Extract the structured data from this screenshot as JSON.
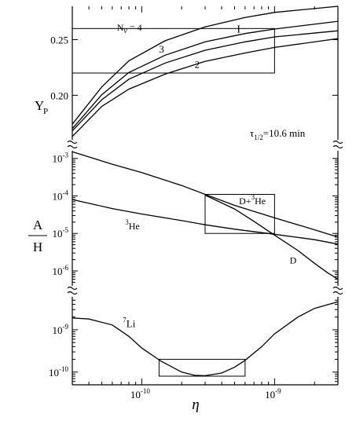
{
  "chart_data": {
    "type": "line",
    "xlabel": "η",
    "x_scale": "log",
    "xlim": [
      3e-11,
      3e-09
    ],
    "x_ticks": [
      {
        "value": 1e-10,
        "base": "10",
        "exp": "-10"
      },
      {
        "value": 1e-09,
        "base": "10",
        "exp": "-9"
      }
    ],
    "annotation_text": "τ1/2=10.6 min",
    "annotation": {
      "tau": "τ",
      "sub": "1/2",
      "rest": "=10.6 min"
    },
    "panels": [
      {
        "id": "yp",
        "ylabel": "Y",
        "ylabel_sub": "P",
        "y_scale": "linear",
        "ylim": [
          0.16,
          0.28
        ],
        "y_ticks": [
          {
            "value": 0.2,
            "label": "0.20"
          },
          {
            "value": 0.25,
            "label": "0.25"
          }
        ],
        "box": {
          "x": [
            3e-11,
            1e-09
          ],
          "y": [
            0.22,
            0.26
          ]
        },
        "series": [
          {
            "name": "Nν=4",
            "label_parts": [
              "N",
              "ν",
              " = 4"
            ],
            "label_at": [
              6.5e-11,
              0.258
            ],
            "points": [
              [
                3e-11,
                0.174
              ],
              [
                5e-11,
                0.2075
              ],
              [
                8e-11,
                0.231
              ],
              [
                1.5e-10,
                0.249
              ],
              [
                3e-10,
                0.2615
              ],
              [
                6e-10,
                0.27
              ],
              [
                1e-09,
                0.2745
              ],
              [
                3e-09,
                0.28
              ]
            ]
          },
          {
            "name": "I",
            "label_parts": [
              "I"
            ],
            "label_at": [
              5.2e-10,
              0.2565
            ],
            "points": [
              [
                3e-11,
                0.17
              ],
              [
                5e-11,
                0.2005
              ],
              [
                8e-11,
                0.2205
              ],
              [
                1.5e-10,
                0.236
              ],
              [
                3e-10,
                0.248
              ],
              [
                6e-10,
                0.2555
              ],
              [
                1e-09,
                0.2595
              ],
              [
                3e-09,
                0.2665
              ]
            ]
          },
          {
            "name": "3",
            "label_parts": [
              "3"
            ],
            "label_at": [
              1.35e-10,
              0.2385
            ],
            "points": [
              [
                3e-11,
                0.168
              ],
              [
                5e-11,
                0.196
              ],
              [
                8e-11,
                0.2145
              ],
              [
                1.5e-10,
                0.229
              ],
              [
                3e-10,
                0.2405
              ],
              [
                6e-10,
                0.248
              ],
              [
                1e-09,
                0.2525
              ],
              [
                3e-09,
                0.258
              ]
            ]
          },
          {
            "name": "2",
            "label_parts": [
              "2"
            ],
            "label_at": [
              2.5e-10,
              0.2245
            ],
            "points": [
              [
                3e-11,
                0.163
              ],
              [
                5e-11,
                0.19
              ],
              [
                8e-11,
                0.2055
              ],
              [
                1.5e-10,
                0.219
              ],
              [
                3e-10,
                0.2305
              ],
              [
                6e-10,
                0.238
              ],
              [
                1e-09,
                0.243
              ],
              [
                3e-09,
                0.251
              ]
            ]
          }
        ]
      },
      {
        "id": "dhe",
        "ylabel_num": "A",
        "ylabel_den": "H",
        "y_scale": "log",
        "ylim": [
          4e-07,
          0.0016
        ],
        "y_ticks": [
          {
            "value": 0.001,
            "base": "10",
            "exp": "-3"
          },
          {
            "value": 0.0001,
            "base": "10",
            "exp": "-4"
          },
          {
            "value": 1e-05,
            "base": "10",
            "exp": "-5"
          },
          {
            "value": 1e-06,
            "base": "10",
            "exp": "-6"
          }
        ],
        "box": {
          "x": [
            3e-10,
            1e-09
          ],
          "y": [
            1e-05,
            0.00011
          ]
        },
        "series": [
          {
            "name": "D+3He",
            "label_parts": [
              "D+",
              "3",
              "He"
            ],
            "label_at": [
              5.4e-10,
              6e-05
            ],
            "points": [
              [
                3e-11,
                0.0015
              ],
              [
                6e-11,
                0.0007
              ],
              [
                1e-10,
                0.00042
              ],
              [
                2e-10,
                0.00019
              ],
              [
                3e-10,
                0.00011
              ],
              [
                5e-10,
                5.6e-05
              ],
              [
                1e-09,
                2.6e-05
              ],
              [
                2e-09,
                1.25e-05
              ],
              [
                3e-09,
                8e-06
              ]
            ]
          },
          {
            "name": "D",
            "label_parts": [
              "D"
            ],
            "label_at": [
              1.3e-09,
              1.6e-06
            ],
            "points": [
              [
                3e-10,
                0.000105
              ],
              [
                5e-10,
                4.5e-05
              ],
              [
                7e-10,
                2.1e-05
              ],
              [
                1e-09,
                9e-06
              ],
              [
                1.5e-09,
                3.5e-06
              ],
              [
                2e-09,
                1.6e-06
              ],
              [
                2.5e-09,
                9e-07
              ],
              [
                3e-09,
                6e-07
              ]
            ]
          },
          {
            "name": "3He",
            "label_parts": [
              "3",
              "He"
            ],
            "label_at": [
              7.5e-11,
              1.3e-05
            ],
            "points": [
              [
                3e-11,
                8e-05
              ],
              [
                6e-11,
                4.6e-05
              ],
              [
                1e-10,
                3.3e-05
              ],
              [
                2e-10,
                2.2e-05
              ],
              [
                3e-10,
                1.7e-05
              ],
              [
                5e-10,
                1.3e-05
              ],
              [
                1e-09,
                9.5e-06
              ],
              [
                2e-09,
                6.8e-06
              ],
              [
                3e-09,
                5.2e-06
              ]
            ]
          }
        ]
      },
      {
        "id": "li",
        "y_scale": "log",
        "ylim": [
          5e-11,
          6e-09
        ],
        "y_ticks": [
          {
            "value": 1e-09,
            "base": "10",
            "exp": "-9"
          },
          {
            "value": 1e-10,
            "base": "10",
            "exp": "-10"
          }
        ],
        "box": {
          "x": [
            1.35e-10,
            6e-10
          ],
          "y": [
            8e-11,
            2e-10
          ]
        },
        "series": [
          {
            "name": "7Li",
            "label_parts": [
              "7",
              "Li"
            ],
            "label_at": [
              7.2e-11,
              1.15e-09
            ],
            "points": [
              [
                3e-11,
                1.9e-09
              ],
              [
                4e-11,
                1.8e-09
              ],
              [
                6e-11,
                1.3e-09
              ],
              [
                8e-11,
                7e-10
              ],
              [
                1e-10,
                3.7e-10
              ],
              [
                1.4e-10,
                1.8e-10
              ],
              [
                2e-10,
                1e-10
              ],
              [
                2.5e-10,
                8.4e-11
              ],
              [
                3e-10,
                8.2e-11
              ],
              [
                4e-10,
                9.5e-11
              ],
              [
                5e-10,
                1.3e-10
              ],
              [
                6e-10,
                1.9e-10
              ],
              [
                8e-10,
                4e-10
              ],
              [
                1e-09,
                8e-10
              ],
              [
                1.5e-09,
                2e-09
              ],
              [
                2e-09,
                3.2e-09
              ],
              [
                3e-09,
                4.6e-09
              ]
            ]
          }
        ]
      }
    ]
  }
}
